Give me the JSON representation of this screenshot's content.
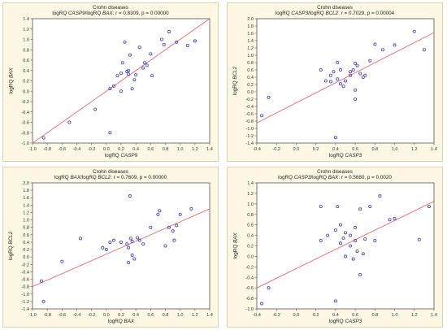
{
  "chart_data": [
    {
      "type": "scatter",
      "title": "Crohn diseases",
      "subtitle_parts": [
        "logRQ ",
        "CASP9",
        "/logRQ ",
        "BAX",
        ": r = 0.8309, p = 0.00000"
      ],
      "xlabel_parts": [
        "logRQ ",
        "CASP9"
      ],
      "ylabel_parts": [
        "logRQ ",
        "BAX"
      ],
      "xlim": [
        -1.0,
        1.4
      ],
      "ylim": [
        -1.0,
        1.4
      ],
      "xticks": [
        "-1.0",
        "-0.8",
        "-0.6",
        "-0.4",
        "-0.2",
        "0.0",
        "0.2",
        "0.4",
        "0.6",
        "0.8",
        "1.0",
        "1.2",
        "1.4"
      ],
      "yticks": [
        "-1.0",
        "-0.8",
        "-0.6",
        "-0.4",
        "-0.2",
        "0.0",
        "0.2",
        "0.4",
        "0.6",
        "0.8",
        "1.0",
        "1.2",
        "1.4"
      ],
      "points": [
        [
          -0.85,
          -0.9
        ],
        [
          -0.5,
          -0.6
        ],
        [
          -0.15,
          -0.35
        ],
        [
          0.05,
          -0.8
        ],
        [
          0.05,
          0.05
        ],
        [
          0.1,
          0.1
        ],
        [
          0.2,
          0.0
        ],
        [
          0.15,
          0.3
        ],
        [
          0.2,
          0.35
        ],
        [
          0.22,
          0.55
        ],
        [
          0.25,
          0.95
        ],
        [
          0.28,
          0.38
        ],
        [
          0.3,
          0.4
        ],
        [
          0.32,
          0.7
        ],
        [
          0.35,
          0.05
        ],
        [
          0.38,
          0.22
        ],
        [
          0.4,
          0.32
        ],
        [
          0.45,
          0.85
        ],
        [
          0.5,
          0.45
        ],
        [
          0.52,
          0.55
        ],
        [
          0.55,
          0.5
        ],
        [
          0.6,
          0.72
        ],
        [
          0.62,
          0.3
        ],
        [
          0.75,
          1.0
        ],
        [
          0.85,
          1.15
        ],
        [
          0.95,
          0.95
        ],
        [
          1.1,
          0.88
        ],
        [
          1.2,
          0.97
        ],
        [
          0.78,
          0.9
        ],
        [
          0.3,
          0.33
        ]
      ],
      "fit": [
        [
          -1.0,
          -1.0
        ],
        [
          1.4,
          1.4
        ]
      ]
    },
    {
      "type": "scatter",
      "title": "Crohn diseases",
      "subtitle_parts": [
        "logRQ ",
        "CASP3",
        "/logRQ ",
        "BCL2",
        ": r = 0.7029, p = 0.00004"
      ],
      "xlabel_parts": [
        "logRQ ",
        "CASP3"
      ],
      "ylabel_parts": [
        "logRQ ",
        "BCL2"
      ],
      "xlim": [
        -0.4,
        1.4
      ],
      "ylim": [
        -1.4,
        2.0
      ],
      "xticks": [
        "-0.4",
        "-0.2",
        "0.0",
        "0.2",
        "0.4",
        "0.6",
        "0.8",
        "1.0",
        "1.2",
        "1.4"
      ],
      "yticks": [
        "-1.4",
        "-1.2",
        "-1.0",
        "-0.8",
        "-0.6",
        "-0.4",
        "-0.2",
        "0.0",
        "0.2",
        "0.4",
        "0.6",
        "0.8",
        "1.0",
        "1.2",
        "1.4",
        "1.6",
        "1.8",
        "2.0"
      ],
      "points": [
        [
          -0.35,
          -0.65
        ],
        [
          -0.28,
          -0.15
        ],
        [
          0.25,
          0.6
        ],
        [
          0.3,
          0.3
        ],
        [
          0.35,
          0.45
        ],
        [
          0.35,
          0.28
        ],
        [
          0.38,
          0.55
        ],
        [
          0.4,
          -1.25
        ],
        [
          0.42,
          0.8
        ],
        [
          0.42,
          0.35
        ],
        [
          0.45,
          0.22
        ],
        [
          0.48,
          0.15
        ],
        [
          0.5,
          0.3
        ],
        [
          0.55,
          0.45
        ],
        [
          0.58,
          0.6
        ],
        [
          0.6,
          0.78
        ],
        [
          0.6,
          0.05
        ],
        [
          0.6,
          -0.2
        ],
        [
          0.62,
          0.72
        ],
        [
          0.65,
          0.5
        ],
        [
          0.68,
          0.4
        ],
        [
          0.7,
          0.45
        ],
        [
          0.75,
          0.85
        ],
        [
          0.8,
          1.3
        ],
        [
          0.88,
          1.15
        ],
        [
          1.0,
          1.28
        ],
        [
          1.2,
          1.65
        ],
        [
          1.3,
          1.15
        ],
        [
          0.55,
          0.55
        ],
        [
          0.45,
          0.6
        ]
      ],
      "fit": [
        [
          -0.4,
          -0.85
        ],
        [
          1.4,
          1.62
        ]
      ]
    },
    {
      "type": "scatter",
      "title": "Crohn diseases",
      "subtitle_parts": [
        "logRQ ",
        "BAX",
        "/logRQ ",
        "BCL2",
        ": r = 0.7609, p = 0.00000"
      ],
      "xlabel_parts": [
        "logRQ ",
        "BAX"
      ],
      "ylabel_parts": [
        "logRQ ",
        "BCL2"
      ],
      "xlim": [
        -1.0,
        1.4
      ],
      "ylim": [
        -1.4,
        2.0
      ],
      "xticks": [
        "-1.0",
        "-0.8",
        "-0.6",
        "-0.4",
        "-0.2",
        "0.0",
        "0.2",
        "0.4",
        "0.6",
        "0.8",
        "1.0",
        "1.2",
        "1.4"
      ],
      "yticks": [
        "-1.4",
        "-1.2",
        "-1.0",
        "-0.8",
        "-0.6",
        "-0.4",
        "-0.2",
        "0.0",
        "0.2",
        "0.4",
        "0.6",
        "0.8",
        "1.0",
        "1.2",
        "1.4",
        "1.6",
        "1.8",
        "2.0"
      ],
      "points": [
        [
          -0.88,
          -0.65
        ],
        [
          -0.85,
          -1.2
        ],
        [
          -0.6,
          -0.12
        ],
        [
          -0.35,
          0.5
        ],
        [
          -0.05,
          0.25
        ],
        [
          0.0,
          0.2
        ],
        [
          0.05,
          0.4
        ],
        [
          0.1,
          0.45
        ],
        [
          0.2,
          0.4
        ],
        [
          0.28,
          0.35
        ],
        [
          0.3,
          -0.15
        ],
        [
          0.32,
          1.65
        ],
        [
          0.33,
          0.5
        ],
        [
          0.35,
          0.05
        ],
        [
          0.38,
          -0.05
        ],
        [
          0.42,
          0.52
        ],
        [
          0.45,
          0.45
        ],
        [
          0.5,
          0.35
        ],
        [
          0.6,
          0.8
        ],
        [
          0.7,
          1.15
        ],
        [
          0.72,
          1.25
        ],
        [
          0.8,
          0.3
        ],
        [
          0.85,
          0.8
        ],
        [
          0.9,
          0.7
        ],
        [
          0.92,
          0.45
        ],
        [
          0.95,
          0.85
        ],
        [
          1.0,
          1.15
        ],
        [
          1.15,
          1.3
        ],
        [
          0.3,
          0.25
        ],
        [
          0.35,
          0.42
        ]
      ],
      "fit": [
        [
          -1.0,
          -0.8
        ],
        [
          1.4,
          1.3
        ]
      ]
    },
    {
      "type": "scatter",
      "title": "Crohn diseases",
      "subtitle_parts": [
        "logRQ ",
        "CASP3",
        "/logRQ ",
        "BAX",
        ": r = 0.5680, p = 0.0020"
      ],
      "xlabel_parts": [
        "logRQ ",
        "CASP3"
      ],
      "ylabel_parts": [
        "logRQ ",
        "BAX"
      ],
      "xlim": [
        -0.4,
        1.4
      ],
      "ylim": [
        -1.0,
        1.4
      ],
      "xticks": [
        "-0.4",
        "-0.2",
        "0.0",
        "0.2",
        "0.4",
        "0.6",
        "0.8",
        "1.0",
        "1.2",
        "1.4"
      ],
      "yticks": [
        "-1.0",
        "-0.8",
        "-0.6",
        "-0.4",
        "-0.2",
        "0.0",
        "0.2",
        "0.4",
        "0.6",
        "0.8",
        "1.0",
        "1.2",
        "1.4"
      ],
      "points": [
        [
          -0.35,
          -0.9
        ],
        [
          -0.28,
          -0.6
        ],
        [
          0.25,
          0.95
        ],
        [
          0.25,
          0.3
        ],
        [
          0.32,
          0.4
        ],
        [
          0.4,
          0.5
        ],
        [
          0.42,
          0.95
        ],
        [
          0.4,
          -0.85
        ],
        [
          0.45,
          0.25
        ],
        [
          0.48,
          0.35
        ],
        [
          0.5,
          0.0
        ],
        [
          0.55,
          0.2
        ],
        [
          0.58,
          -0.05
        ],
        [
          0.6,
          0.3
        ],
        [
          0.6,
          0.55
        ],
        [
          0.62,
          0.1
        ],
        [
          0.65,
          -0.35
        ],
        [
          0.65,
          0.9
        ],
        [
          0.68,
          0.05
        ],
        [
          0.7,
          0.33
        ],
        [
          0.75,
          0.95
        ],
        [
          0.8,
          0.3
        ],
        [
          0.85,
          1.15
        ],
        [
          0.95,
          0.7
        ],
        [
          1.0,
          0.72
        ],
        [
          1.25,
          0.32
        ],
        [
          1.35,
          0.95
        ],
        [
          0.5,
          0.45
        ],
        [
          0.55,
          0.4
        ],
        [
          0.45,
          0.6
        ]
      ],
      "fit": [
        [
          -0.4,
          -0.6
        ],
        [
          1.4,
          1.05
        ]
      ]
    }
  ],
  "colors": {
    "background": "#fcf8e3",
    "point": "#3f3fb5",
    "fit": "#e86a6a"
  }
}
